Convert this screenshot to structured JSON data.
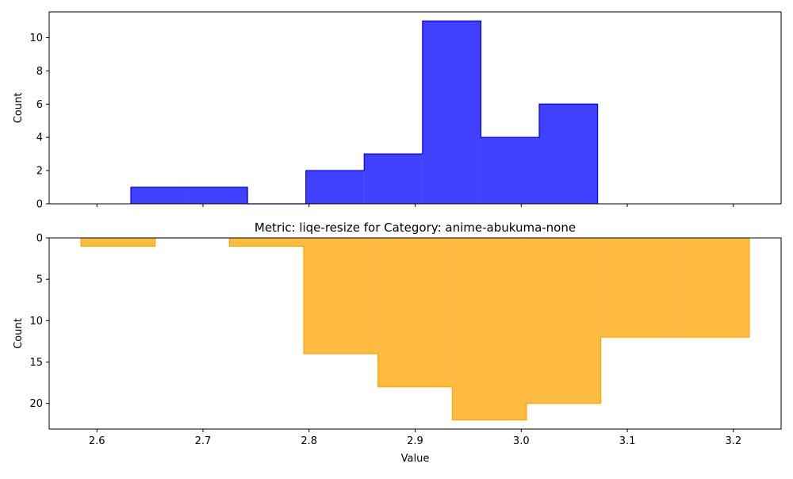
{
  "chart_data": [
    {
      "type": "bar",
      "subtype": "step-histogram",
      "title": "",
      "xlabel": "",
      "ylabel": "Count",
      "xlim": [
        2.555,
        3.245
      ],
      "ylim": [
        0,
        11.55
      ],
      "yticks": [
        0,
        2,
        4,
        6,
        8,
        10
      ],
      "xticks": [
        2.6,
        2.7,
        2.8,
        2.9,
        3.0,
        3.1,
        3.2
      ],
      "xticklabels_visible": false,
      "inverted_y": false,
      "bin_edges": [
        2.632,
        2.687,
        2.742,
        2.797,
        2.852,
        2.907,
        2.962,
        3.017,
        3.072
      ],
      "values": [
        1,
        1,
        0,
        2,
        3,
        11,
        4,
        6
      ],
      "fill_color": "#0000ff",
      "fill_opacity": 0.75,
      "edge_color": "#0000ff"
    },
    {
      "type": "bar",
      "subtype": "step-histogram",
      "title": "Metric: liqe-resize for Category: anime-abukuma-none",
      "xlabel": "Value",
      "ylabel": "Count",
      "xlim": [
        2.555,
        3.245
      ],
      "ylim": [
        23.1,
        0
      ],
      "yticks": [
        0,
        5,
        10,
        15,
        20
      ],
      "xticks": [
        2.6,
        2.7,
        2.8,
        2.9,
        3.0,
        3.1,
        3.2
      ],
      "xticklabels": [
        "2.6",
        "2.7",
        "2.8",
        "2.9",
        "3.0",
        "3.1",
        "3.2"
      ],
      "xticklabels_visible": true,
      "inverted_y": true,
      "bin_edges": [
        2.585,
        2.655,
        2.725,
        2.795,
        2.865,
        2.935,
        3.005,
        3.075,
        3.145,
        3.215
      ],
      "values": [
        1,
        0,
        1,
        14,
        18,
        22,
        20,
        12,
        12
      ],
      "fill_color": "#ffa500",
      "fill_opacity": 0.75,
      "edge_color": "#ffa500"
    }
  ]
}
